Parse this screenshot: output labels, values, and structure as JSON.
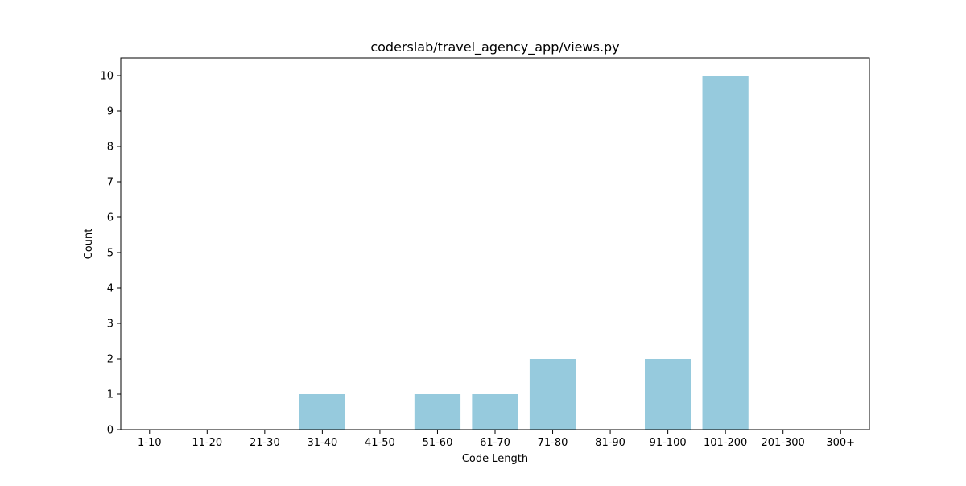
{
  "chart_data": {
    "type": "bar",
    "title": "coderslab/travel_agency_app/views.py",
    "xlabel": "Code Length",
    "ylabel": "Count",
    "categories": [
      "1-10",
      "11-20",
      "21-30",
      "31-40",
      "41-50",
      "51-60",
      "61-70",
      "71-80",
      "81-90",
      "91-100",
      "101-200",
      "201-300",
      "300+"
    ],
    "values": [
      0,
      0,
      0,
      1,
      0,
      1,
      1,
      2,
      0,
      2,
      10,
      0,
      0
    ],
    "yticks": [
      0,
      1,
      2,
      3,
      4,
      5,
      6,
      7,
      8,
      9,
      10
    ],
    "ylim": [
      0,
      10.5
    ],
    "bar_color": "#96cadd",
    "grid": false,
    "legend": "none"
  }
}
